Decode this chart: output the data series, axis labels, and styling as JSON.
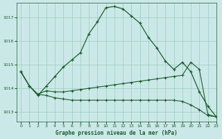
{
  "title": "Graphe pression niveau de la mer (hPa)",
  "background_color": "#cbe8e8",
  "grid_color": "#99ccbb",
  "line_color": "#1a5c2a",
  "xlim": [
    -0.5,
    23
  ],
  "ylim": [
    1012.6,
    1017.6
  ],
  "yticks": [
    1013,
    1014,
    1015,
    1016,
    1017
  ],
  "xticks": [
    0,
    1,
    2,
    3,
    4,
    5,
    6,
    7,
    8,
    9,
    10,
    11,
    12,
    13,
    14,
    15,
    16,
    17,
    18,
    19,
    20,
    21,
    22,
    23
  ],
  "series_main": [
    1014.7,
    1014.1,
    1013.7,
    1014.1,
    1014.5,
    1014.9,
    1015.2,
    1015.5,
    1016.3,
    1016.8,
    1017.4,
    1017.45,
    1017.35,
    1017.05,
    1016.75,
    1016.15,
    1015.7,
    1015.15,
    1014.8,
    1015.1,
    1014.7,
    1013.85,
    1013.25,
    1012.8
  ],
  "series_upper_flat": [
    1014.7,
    1014.1,
    1013.75,
    1013.9,
    1013.85,
    1013.85,
    1013.9,
    1013.95,
    1014.0,
    1014.05,
    1014.1,
    1014.15,
    1014.2,
    1014.25,
    1014.3,
    1014.35,
    1014.4,
    1014.45,
    1014.5,
    1014.55,
    1015.1,
    1014.8,
    1012.9,
    1012.8
  ],
  "series_lower_flat": [
    1014.7,
    1014.1,
    1013.75,
    1013.7,
    1013.6,
    1013.55,
    1013.5,
    1013.5,
    1013.5,
    1013.5,
    1013.5,
    1013.5,
    1013.5,
    1013.5,
    1013.5,
    1013.5,
    1013.5,
    1013.5,
    1013.5,
    1013.45,
    1013.3,
    1013.1,
    1012.85,
    1012.8
  ]
}
